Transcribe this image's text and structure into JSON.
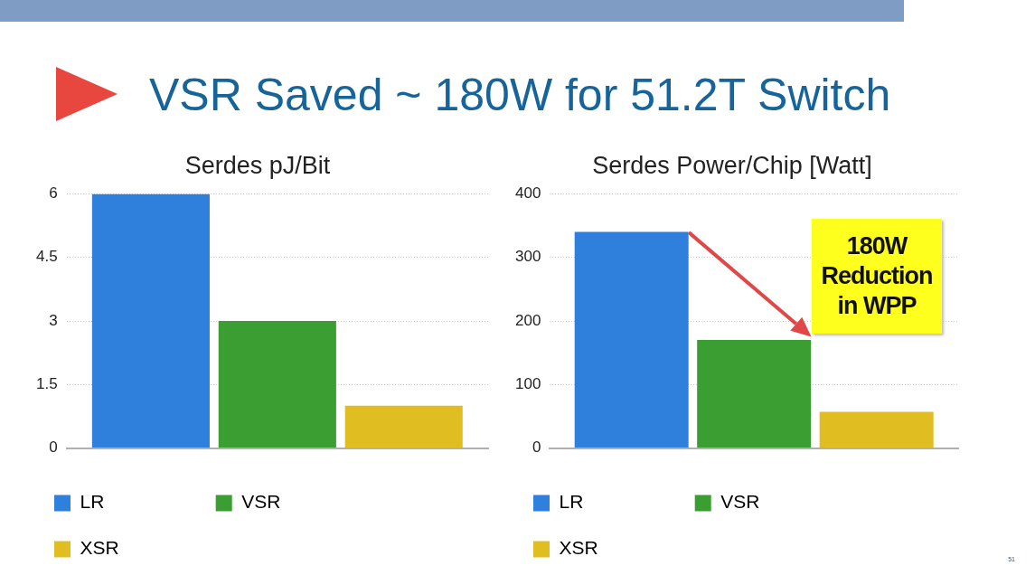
{
  "chart_data": [
    {
      "type": "other",
      "title": "VSR Saved ~ 180W for 51.2T Switch",
      "annotations": [
        "51"
      ]
    },
    {
      "type": "bar",
      "title": "Serdes pJ/Bit",
      "categories": [
        null
      ],
      "ylim": [
        0,
        6
      ],
      "yticks": [
        0,
        1.5,
        3,
        4.5,
        6
      ],
      "grid": "y",
      "legend": "bottom",
      "series": [
        {
          "name": "LR",
          "color": "#2f7fdc",
          "values": [
            6
          ]
        },
        {
          "name": "VSR",
          "color": "#3a9e32",
          "values": [
            3
          ]
        },
        {
          "name": "XSR",
          "color": "#e0be22",
          "values": [
            1
          ]
        }
      ]
    },
    {
      "type": "bar",
      "title": "Serdes Power/Chip [Watt]",
      "categories": [
        null
      ],
      "ylim": [
        0,
        400
      ],
      "yticks": [
        0,
        100,
        200,
        300,
        400
      ],
      "grid": "y",
      "legend": "bottom",
      "series": [
        {
          "name": "LR",
          "color": "#2f7fdc",
          "values": [
            340
          ]
        },
        {
          "name": "VSR",
          "color": "#3a9e32",
          "values": [
            170
          ]
        },
        {
          "name": "XSR",
          "color": "#e0be22",
          "values": [
            57
          ]
        }
      ],
      "annotations": [
        "180W Reduction in WPP"
      ]
    }
  ]
}
